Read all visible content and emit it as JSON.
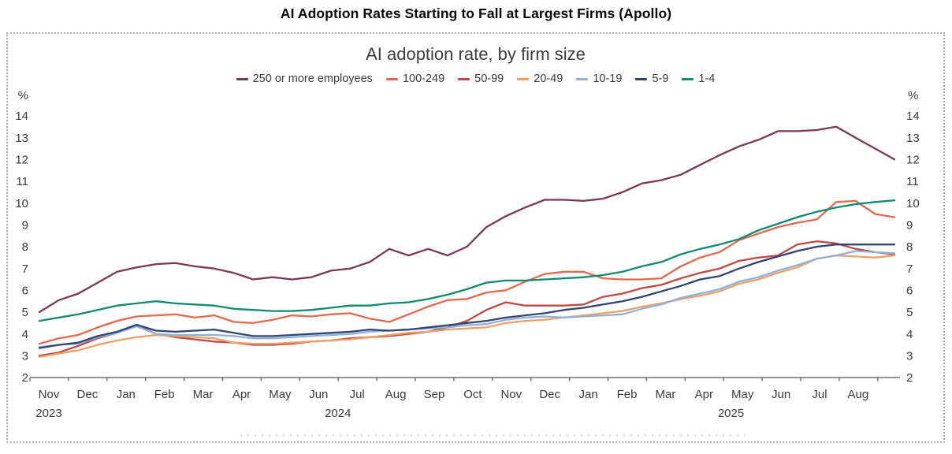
{
  "page_title": "AI Adoption Rates Starting to Fall at Largest Firms (Apollo)",
  "chart_data": {
    "type": "line",
    "title": "AI adoption rate, by firm size",
    "ylabel": "%",
    "y_axis": {
      "unit": "%",
      "min": 2,
      "max": 14,
      "tick_step": 1,
      "ticks": [
        2,
        3,
        4,
        5,
        6,
        7,
        8,
        9,
        10,
        11,
        12,
        13,
        14
      ],
      "labels_on_both_sides": true
    },
    "x_axis": {
      "start": "Nov 2023",
      "end": "Aug 2025",
      "points_per_month": 2,
      "month_labels": [
        "Nov",
        "Dec",
        "Jan",
        "Feb",
        "Mar",
        "Apr",
        "May",
        "Jun",
        "Jul",
        "Aug",
        "Sep",
        "Oct",
        "Nov",
        "Dec",
        "Jan",
        "Feb",
        "Mar",
        "Apr",
        "May",
        "Jun",
        "Jul",
        "Aug"
      ],
      "year_labels": [
        {
          "text": "2023",
          "month_index": 0
        },
        {
          "text": "2024",
          "month_index": 7.5
        },
        {
          "text": "2025",
          "month_index": 17.7
        }
      ]
    },
    "legend_position": "top",
    "grid": false,
    "series": [
      {
        "name": "250 or more employees",
        "color": "#7B3A4C",
        "values": [
          5.0,
          5.55,
          5.85,
          6.35,
          6.85,
          7.05,
          7.2,
          7.25,
          7.1,
          7.0,
          6.8,
          6.5,
          6.6,
          6.5,
          6.6,
          6.9,
          7.0,
          7.3,
          7.9,
          7.6,
          7.9,
          7.6,
          8.0,
          8.9,
          9.4,
          9.8,
          10.15,
          10.15,
          10.1,
          10.2,
          10.5,
          10.9,
          11.05,
          11.3,
          11.75,
          12.2,
          12.6,
          12.9,
          13.3,
          13.3,
          13.35,
          13.5,
          13.0,
          12.5,
          12.0
        ]
      },
      {
        "name": "100-249",
        "color": "#E2694E",
        "values": [
          3.55,
          3.8,
          3.95,
          4.3,
          4.6,
          4.8,
          4.85,
          4.9,
          4.75,
          4.85,
          4.55,
          4.5,
          4.65,
          4.85,
          4.8,
          4.9,
          4.95,
          4.7,
          4.55,
          4.9,
          5.25,
          5.55,
          5.6,
          5.9,
          6.0,
          6.4,
          6.75,
          6.85,
          6.85,
          6.55,
          6.5,
          6.5,
          6.55,
          7.1,
          7.5,
          7.75,
          8.3,
          8.6,
          8.9,
          9.1,
          9.25,
          10.05,
          10.1,
          9.5,
          9.35
        ]
      },
      {
        "name": "50-99",
        "color": "#BE4A44",
        "values": [
          3.0,
          3.15,
          3.45,
          3.8,
          4.05,
          4.4,
          4.0,
          3.85,
          3.75,
          3.65,
          3.6,
          3.5,
          3.5,
          3.55,
          3.65,
          3.7,
          3.8,
          3.85,
          3.9,
          4.0,
          4.1,
          4.3,
          4.6,
          5.1,
          5.45,
          5.3,
          5.3,
          5.3,
          5.35,
          5.7,
          5.85,
          6.1,
          6.25,
          6.55,
          6.8,
          7.0,
          7.35,
          7.5,
          7.6,
          8.1,
          8.25,
          8.15,
          7.9,
          7.75,
          7.65
        ]
      },
      {
        "name": "20-49",
        "color": "#ECA266",
        "values": [
          2.95,
          3.1,
          3.25,
          3.5,
          3.7,
          3.85,
          3.95,
          3.9,
          3.85,
          3.8,
          3.6,
          3.55,
          3.55,
          3.6,
          3.65,
          3.7,
          3.75,
          3.85,
          3.95,
          4.05,
          4.1,
          4.2,
          4.25,
          4.3,
          4.5,
          4.6,
          4.65,
          4.75,
          4.85,
          4.95,
          5.05,
          5.25,
          5.4,
          5.6,
          5.75,
          5.95,
          6.3,
          6.5,
          6.8,
          7.05,
          7.45,
          7.6,
          7.55,
          7.5,
          7.6
        ]
      },
      {
        "name": "10-19",
        "color": "#8FB0DA",
        "values": [
          3.4,
          3.5,
          3.55,
          3.85,
          4.05,
          4.35,
          4.0,
          3.95,
          3.95,
          3.95,
          3.9,
          3.8,
          3.8,
          3.85,
          3.9,
          3.95,
          4.0,
          4.1,
          4.15,
          4.2,
          4.25,
          4.3,
          4.4,
          4.45,
          4.65,
          4.75,
          4.8,
          4.75,
          4.8,
          4.85,
          4.9,
          5.15,
          5.35,
          5.65,
          5.85,
          6.05,
          6.4,
          6.6,
          6.9,
          7.15,
          7.45,
          7.6,
          7.8,
          7.75,
          7.7
        ]
      },
      {
        "name": "5-9",
        "color": "#2F4672",
        "values": [
          3.35,
          3.5,
          3.6,
          3.9,
          4.1,
          4.42,
          4.15,
          4.1,
          4.15,
          4.2,
          4.05,
          3.9,
          3.9,
          3.95,
          4.0,
          4.05,
          4.1,
          4.2,
          4.15,
          4.2,
          4.3,
          4.4,
          4.5,
          4.6,
          4.75,
          4.85,
          4.95,
          5.1,
          5.2,
          5.35,
          5.5,
          5.7,
          5.95,
          6.2,
          6.5,
          6.65,
          7.0,
          7.3,
          7.55,
          7.8,
          8.0,
          8.1,
          8.1,
          8.1,
          8.1
        ]
      },
      {
        "name": "1-4",
        "color": "#0E8A6E",
        "values": [
          4.6,
          4.75,
          4.9,
          5.1,
          5.3,
          5.4,
          5.5,
          5.4,
          5.35,
          5.3,
          5.15,
          5.1,
          5.05,
          5.05,
          5.1,
          5.2,
          5.3,
          5.3,
          5.4,
          5.45,
          5.6,
          5.8,
          6.05,
          6.35,
          6.45,
          6.45,
          6.5,
          6.55,
          6.6,
          6.7,
          6.85,
          7.1,
          7.3,
          7.65,
          7.9,
          8.1,
          8.35,
          8.75,
          9.05,
          9.35,
          9.6,
          9.8,
          9.95,
          10.05,
          10.13
        ]
      }
    ]
  }
}
